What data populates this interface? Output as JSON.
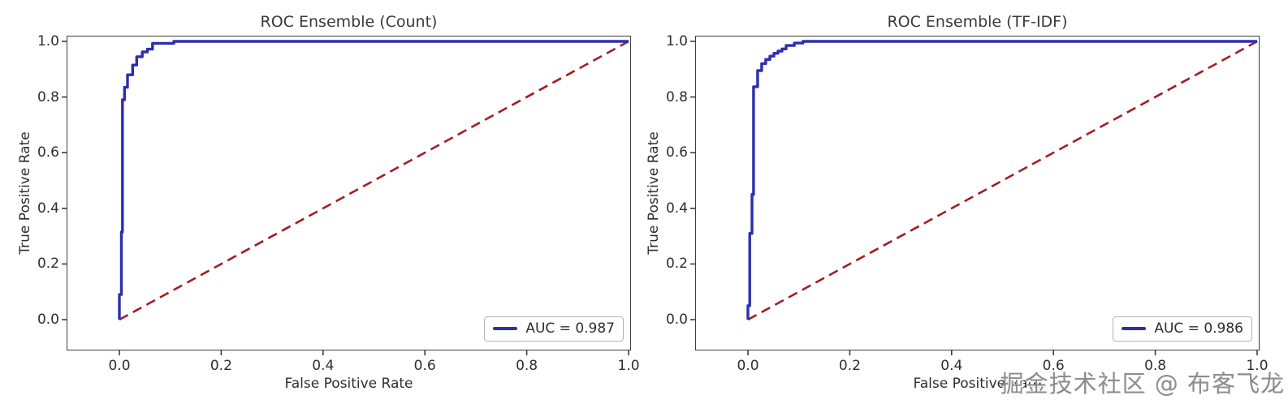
{
  "colors": {
    "curve_blue": "#2e2eae",
    "diagonal_red": "#a21d24",
    "axis": "#3d3d3d",
    "text": "#2e2e2e"
  },
  "watermark": {
    "text": "掘金技术社区 @ 布客飞龙"
  },
  "chart_data": [
    {
      "type": "line",
      "title": "ROC Ensemble (Count)",
      "xlabel": "False Positive Rate",
      "ylabel": "True Positive Rate",
      "x_tick_labels": [
        "0.0",
        "0.2",
        "0.4",
        "0.6",
        "0.8",
        "1.0"
      ],
      "y_tick_labels": [
        "0.0",
        "0.2",
        "0.4",
        "0.6",
        "0.8",
        "1.0"
      ],
      "x_range": [
        0,
        1
      ],
      "y_range": [
        0,
        1
      ],
      "grid": false,
      "legend_position": "lower right",
      "auc": 0.987,
      "series": [
        {
          "name": "AUC = 0.987",
          "color": "#2e2eae",
          "style": "solid",
          "points": [
            [
              0,
              0
            ],
            [
              0,
              0.09
            ],
            [
              0.004,
              0.09
            ],
            [
              0.004,
              0.315
            ],
            [
              0.006,
              0.315
            ],
            [
              0.006,
              0.79
            ],
            [
              0.01,
              0.79
            ],
            [
              0.01,
              0.835
            ],
            [
              0.016,
              0.835
            ],
            [
              0.016,
              0.88
            ],
            [
              0.026,
              0.88
            ],
            [
              0.026,
              0.915
            ],
            [
              0.034,
              0.915
            ],
            [
              0.034,
              0.945
            ],
            [
              0.045,
              0.945
            ],
            [
              0.045,
              0.962
            ],
            [
              0.055,
              0.962
            ],
            [
              0.055,
              0.972
            ],
            [
              0.065,
              0.972
            ],
            [
              0.065,
              0.993
            ],
            [
              0.107,
              0.993
            ],
            [
              0.107,
              1.0
            ],
            [
              1.0,
              1.0
            ]
          ]
        },
        {
          "name": "chance-diagonal",
          "color": "#a21d24",
          "style": "dashed",
          "points": [
            [
              0,
              0
            ],
            [
              1,
              1
            ]
          ]
        }
      ]
    },
    {
      "type": "line",
      "title": "ROC Ensemble (TF-IDF)",
      "xlabel": "False Positive Rate",
      "ylabel": "True Positive Rate",
      "x_tick_labels": [
        "0.0",
        "0.2",
        "0.4",
        "0.6",
        "0.8",
        "1.0"
      ],
      "y_tick_labels": [
        "0.0",
        "0.2",
        "0.4",
        "0.6",
        "0.8",
        "1.0"
      ],
      "x_range": [
        0,
        1
      ],
      "y_range": [
        0,
        1
      ],
      "grid": false,
      "legend_position": "lower right",
      "auc": 0.986,
      "series": [
        {
          "name": "AUC = 0.986",
          "color": "#2e2eae",
          "style": "solid",
          "points": [
            [
              0,
              0
            ],
            [
              0,
              0.05
            ],
            [
              0.0035,
              0.05
            ],
            [
              0.0035,
              0.31
            ],
            [
              0.008,
              0.31
            ],
            [
              0.008,
              0.45
            ],
            [
              0.011,
              0.45
            ],
            [
              0.011,
              0.837
            ],
            [
              0.019,
              0.837
            ],
            [
              0.019,
              0.895
            ],
            [
              0.027,
              0.895
            ],
            [
              0.027,
              0.92
            ],
            [
              0.035,
              0.92
            ],
            [
              0.035,
              0.935
            ],
            [
              0.043,
              0.935
            ],
            [
              0.043,
              0.947
            ],
            [
              0.051,
              0.947
            ],
            [
              0.051,
              0.957
            ],
            [
              0.059,
              0.957
            ],
            [
              0.059,
              0.965
            ],
            [
              0.067,
              0.965
            ],
            [
              0.067,
              0.973
            ],
            [
              0.075,
              0.973
            ],
            [
              0.075,
              0.985
            ],
            [
              0.091,
              0.985
            ],
            [
              0.091,
              0.994
            ],
            [
              0.108,
              0.994
            ],
            [
              0.108,
              1.0
            ],
            [
              1.0,
              1.0
            ]
          ]
        },
        {
          "name": "chance-diagonal",
          "color": "#a21d24",
          "style": "dashed",
          "points": [
            [
              0,
              0
            ],
            [
              1,
              1
            ]
          ]
        }
      ]
    }
  ]
}
